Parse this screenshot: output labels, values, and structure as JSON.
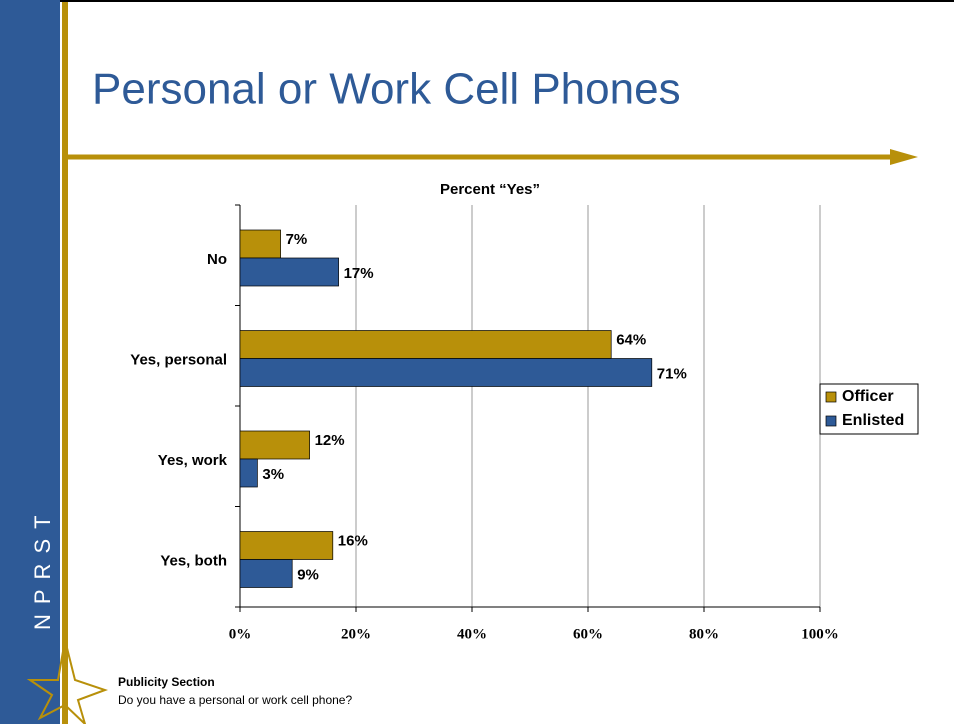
{
  "title": "Personal or Work Cell Phones",
  "side_label": "NPRST",
  "footer": {
    "heading": "Publicity Section",
    "text": "Do you have a personal or work cell phone?"
  },
  "chart_data": {
    "type": "bar",
    "orientation": "horizontal",
    "title": "Percent “Yes”",
    "categories": [
      "No",
      "Yes, personal",
      "Yes, work",
      "Yes, both"
    ],
    "series": [
      {
        "name": "Officer",
        "color": "#b8900a",
        "values": [
          7,
          64,
          12,
          16
        ],
        "value_labels": [
          "7%",
          "64%",
          "12%",
          "16%"
        ]
      },
      {
        "name": "Enlisted",
        "color": "#2e5a97",
        "values": [
          17,
          71,
          3,
          9
        ],
        "value_labels": [
          "17%",
          "71%",
          "3%",
          "9%"
        ]
      }
    ],
    "xlim": [
      0,
      100
    ],
    "xticks": [
      {
        "value": 0,
        "label": "0%"
      },
      {
        "value": 20,
        "label": "20%"
      },
      {
        "value": 40,
        "label": "40%"
      },
      {
        "value": 60,
        "label": "60%"
      },
      {
        "value": 80,
        "label": "80%"
      },
      {
        "value": 100,
        "label": "100%"
      }
    ],
    "grid": true,
    "legend": "right"
  }
}
